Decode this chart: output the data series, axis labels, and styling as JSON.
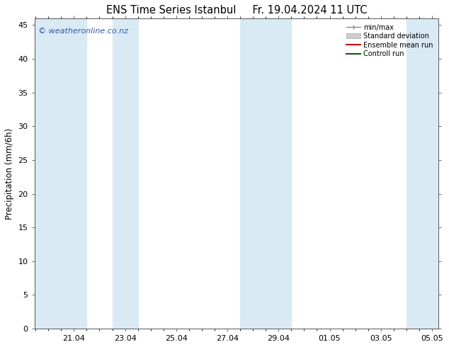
{
  "title": "ENS Time Series Istanbul     Fr. 19.04.2024 11 UTC",
  "ylabel": "Precipitation (mm/6h)",
  "watermark": "© weatheronline.co.nz",
  "ylim": [
    0,
    46
  ],
  "yticks": [
    0,
    5,
    10,
    15,
    20,
    25,
    30,
    35,
    40,
    45
  ],
  "xtick_labels": [
    "21.04",
    "23.04",
    "25.04",
    "27.04",
    "29.04",
    "01.05",
    "03.05",
    "05.05"
  ],
  "band_color": "#daeaf5",
  "legend_items": [
    {
      "label": "min/max",
      "color": "#a0b8c8",
      "type": "errorbar"
    },
    {
      "label": "Standard deviation",
      "color": "#c8d8e4",
      "type": "patch"
    },
    {
      "label": "Ensemble mean run",
      "color": "#cc0000",
      "type": "line"
    },
    {
      "label": "Controll run",
      "color": "#006600",
      "type": "line"
    }
  ],
  "background_color": "#ffffff",
  "plot_bg_color": "#ffffff",
  "border_color": "#555555",
  "tick_color": "#555555",
  "title_fontsize": 10.5,
  "label_fontsize": 8.5,
  "tick_fontsize": 8,
  "watermark_color": "#3355aa",
  "watermark_fontsize": 8
}
